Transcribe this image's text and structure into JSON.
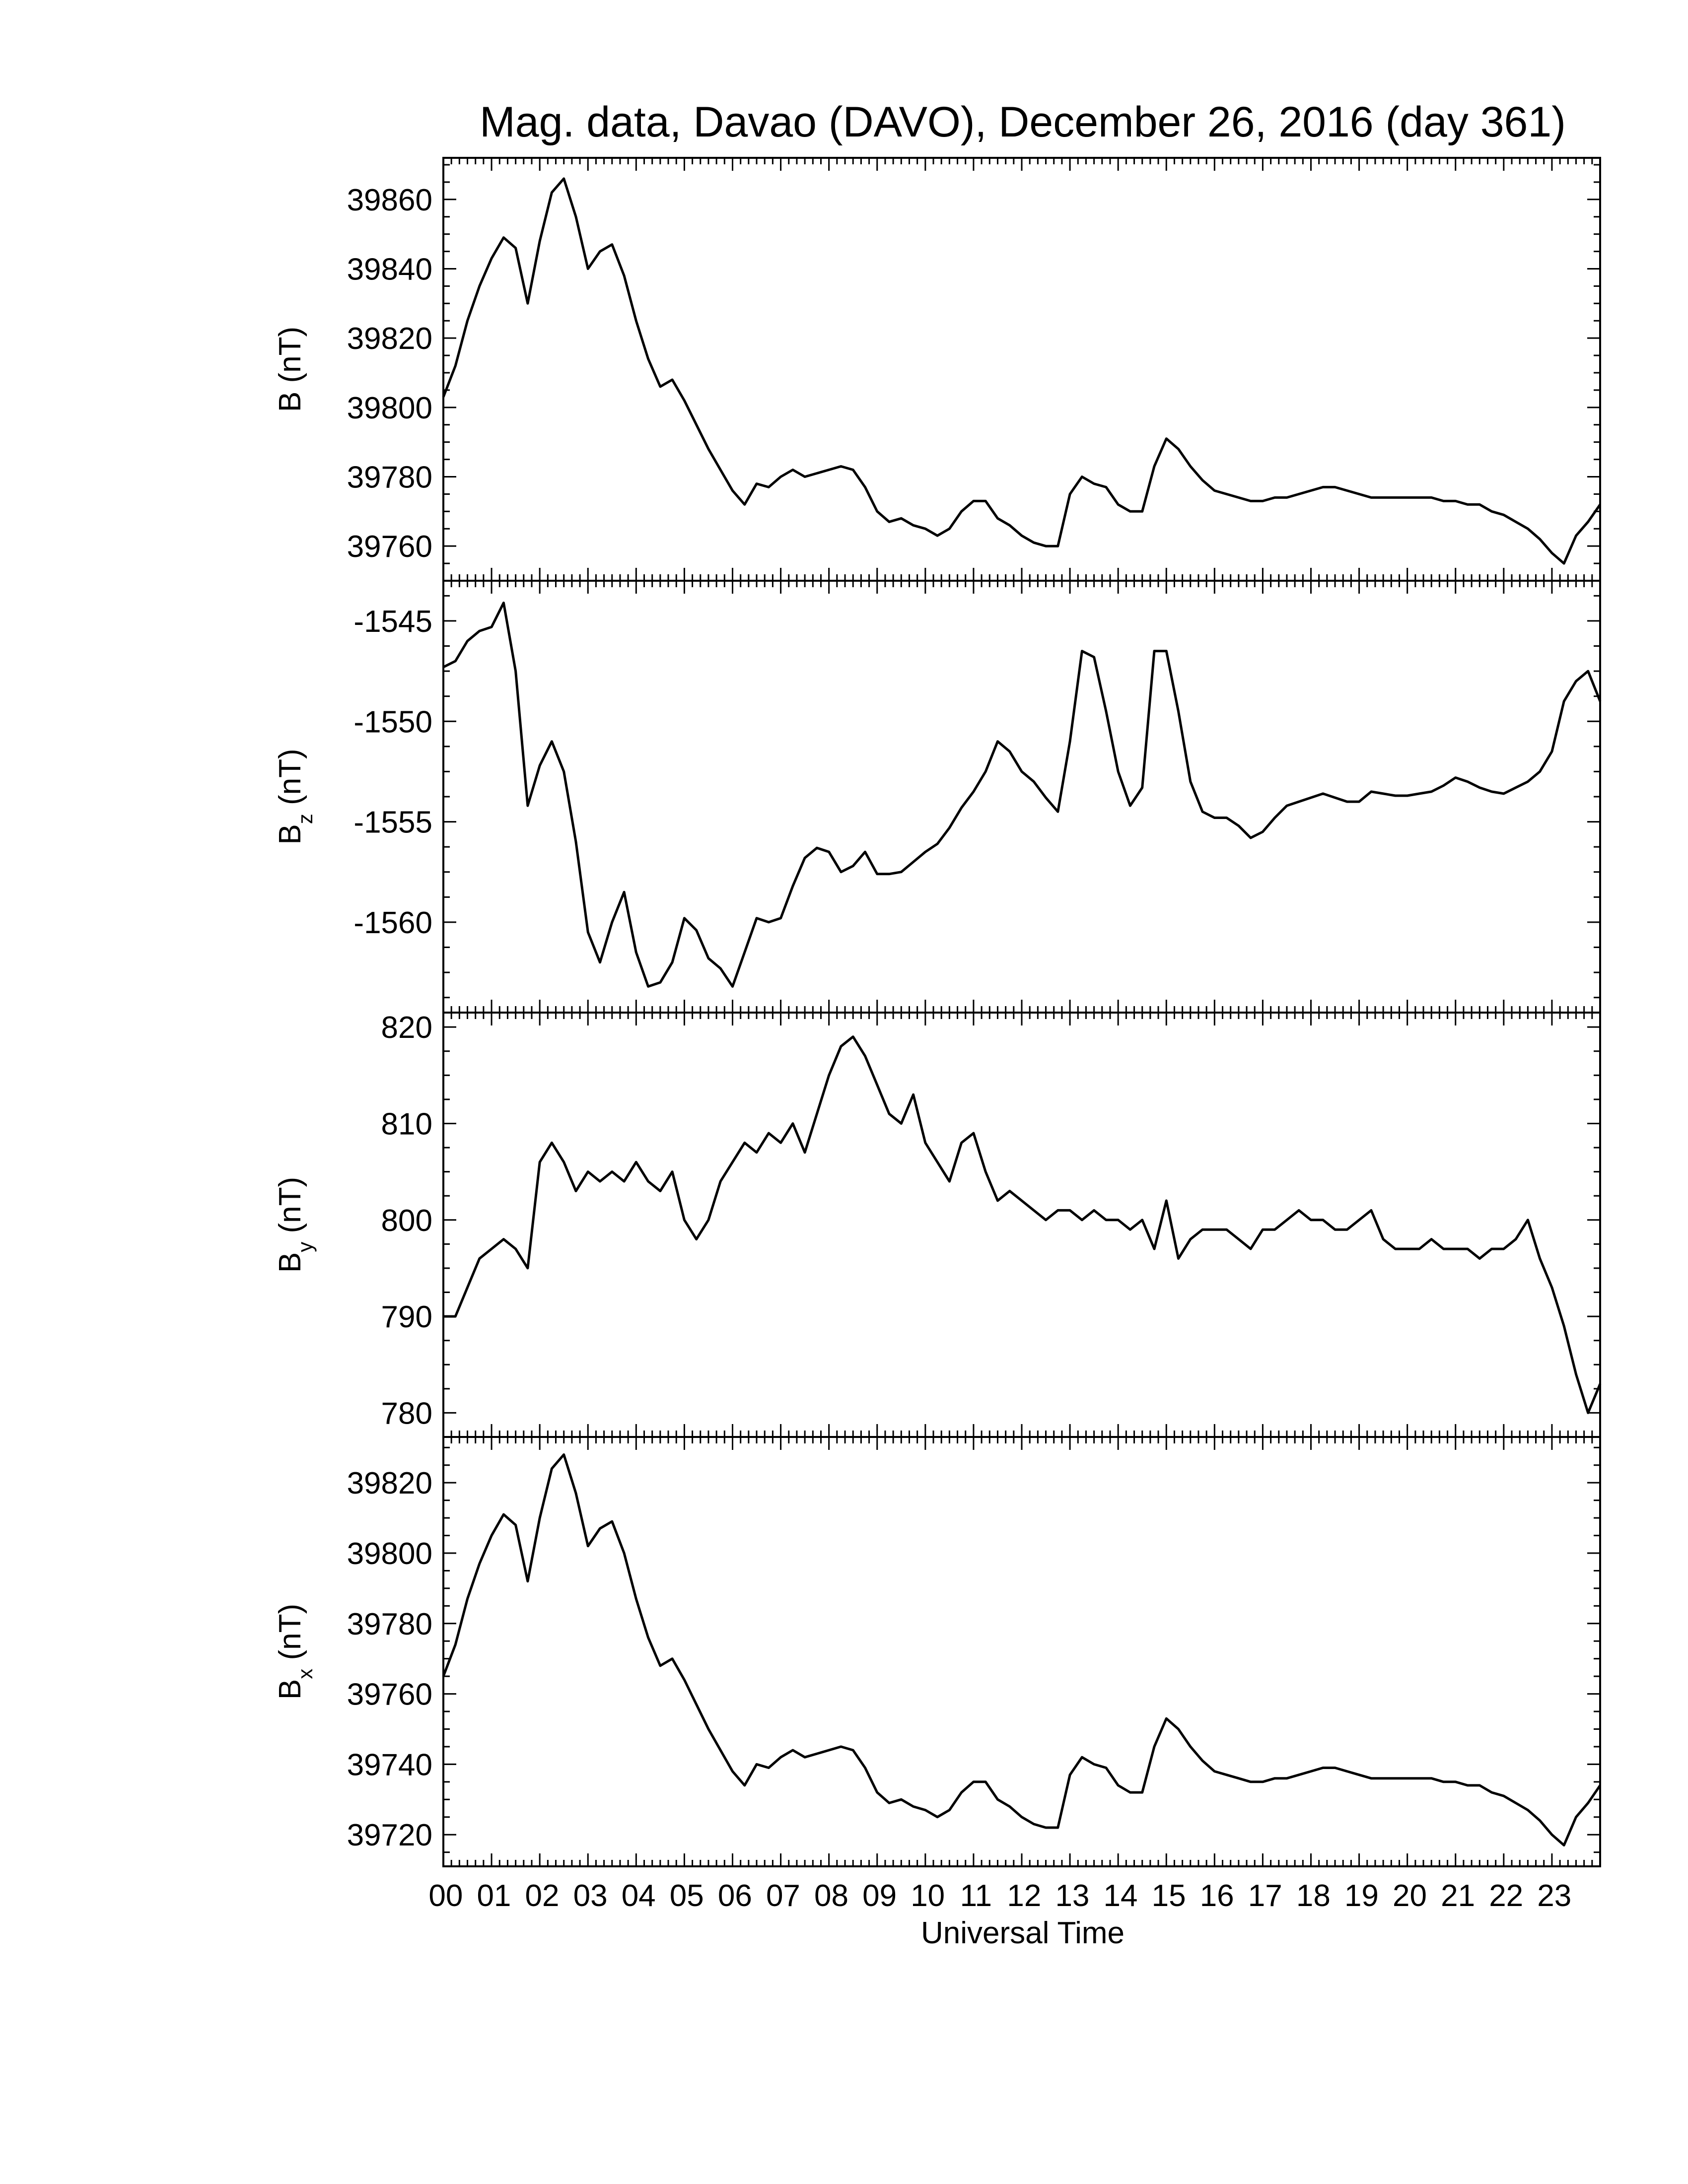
{
  "chart_data": {
    "title": "Mag. data, Davao (DAVO), December 26, 2016 (day 361)",
    "xlabel": "Universal Time",
    "x_ticks": [
      "00",
      "01",
      "02",
      "03",
      "04",
      "05",
      "06",
      "07",
      "08",
      "09",
      "10",
      "11",
      "12",
      "13",
      "14",
      "15",
      "16",
      "17",
      "18",
      "19",
      "20",
      "21",
      "22",
      "23"
    ],
    "xlim": [
      0,
      24
    ],
    "panels": [
      {
        "type": "line",
        "label_main": "B",
        "label_sub": "",
        "label_unit": "(nT)",
        "ylim": [
          39750,
          39872
        ],
        "yticks": [
          39760,
          39780,
          39800,
          39820,
          39840,
          39860
        ],
        "series": [
          {
            "x": [
              0,
              0.25,
              0.5,
              0.75,
              1.0,
              1.25,
              1.5,
              1.75,
              2.0,
              2.25,
              2.5,
              2.75,
              3.0,
              3.25,
              3.5,
              3.75,
              4.0,
              4.25,
              4.5,
              4.75,
              5.0,
              5.25,
              5.5,
              5.75,
              6.0,
              6.25,
              6.5,
              6.75,
              7.0,
              7.25,
              7.5,
              7.75,
              8.0,
              8.25,
              8.5,
              8.75,
              9.0,
              9.25,
              9.5,
              9.75,
              10.0,
              10.25,
              10.5,
              10.75,
              11.0,
              11.25,
              11.5,
              11.75,
              12.0,
              12.25,
              12.5,
              12.75,
              13.0,
              13.25,
              13.5,
              13.75,
              14.0,
              14.25,
              14.5,
              14.75,
              15.0,
              15.25,
              15.5,
              15.75,
              16.0,
              16.25,
              16.5,
              16.75,
              17.0,
              17.25,
              17.5,
              17.75,
              18.0,
              18.25,
              18.5,
              18.75,
              19.0,
              19.25,
              19.5,
              19.75,
              20.0,
              20.25,
              20.5,
              20.75,
              21.0,
              21.25,
              21.5,
              21.75,
              22.0,
              22.25,
              22.5,
              22.75,
              23.0,
              23.25,
              23.5,
              23.75,
              24.0
            ],
            "values": [
              39803,
              39812,
              39825,
              39835,
              39843,
              39849,
              39846,
              39830,
              39848,
              39862,
              39866,
              39855,
              39840,
              39845,
              39847,
              39838,
              39825,
              39814,
              39806,
              39808,
              39802,
              39795,
              39788,
              39782,
              39776,
              39772,
              39778,
              39777,
              39780,
              39782,
              39780,
              39781,
              39782,
              39783,
              39782,
              39777,
              39770,
              39767,
              39768,
              39766,
              39765,
              39763,
              39765,
              39770,
              39773,
              39773,
              39768,
              39766,
              39763,
              39761,
              39760,
              39760,
              39775,
              39780,
              39778,
              39777,
              39772,
              39770,
              39770,
              39783,
              39791,
              39788,
              39783,
              39779,
              39776,
              39775,
              39774,
              39773,
              39773,
              39774,
              39774,
              39775,
              39776,
              39777,
              39777,
              39776,
              39775,
              39774,
              39774,
              39774,
              39774,
              39774,
              39774,
              39773,
              39773,
              39772,
              39772,
              39770,
              39769,
              39767,
              39765,
              39762,
              39758,
              39755,
              39763,
              39767,
              39772
            ]
          }
        ]
      },
      {
        "type": "line",
        "label_main": "B",
        "label_sub": "z",
        "label_unit": "(nT)",
        "ylim": [
          -1564.5,
          -1543
        ],
        "yticks": [
          -1545,
          -1550,
          -1555,
          -1560
        ],
        "series": [
          {
            "x": [
              0,
              0.25,
              0.5,
              0.75,
              1.0,
              1.25,
              1.5,
              1.75,
              2.0,
              2.25,
              2.5,
              2.75,
              3.0,
              3.25,
              3.5,
              3.75,
              4.0,
              4.25,
              4.5,
              4.75,
              5.0,
              5.25,
              5.5,
              5.75,
              6.0,
              6.25,
              6.5,
              6.75,
              7.0,
              7.25,
              7.5,
              7.75,
              8.0,
              8.25,
              8.5,
              8.75,
              9.0,
              9.25,
              9.5,
              9.75,
              10.0,
              10.25,
              10.5,
              10.75,
              11.0,
              11.25,
              11.5,
              11.75,
              12.0,
              12.25,
              12.5,
              12.75,
              13.0,
              13.25,
              13.5,
              13.75,
              14.0,
              14.25,
              14.5,
              14.75,
              15.0,
              15.25,
              15.5,
              15.75,
              16.0,
              16.25,
              16.5,
              16.75,
              17.0,
              17.25,
              17.5,
              17.75,
              18.0,
              18.25,
              18.5,
              18.75,
              19.0,
              19.25,
              19.5,
              19.75,
              20.0,
              20.25,
              20.5,
              20.75,
              21.0,
              21.25,
              21.5,
              21.75,
              22.0,
              22.25,
              22.5,
              22.75,
              23.0,
              23.25,
              23.5,
              23.75,
              24.0
            ],
            "values": [
              -1547.3,
              -1547,
              -1546,
              -1545.5,
              -1545.3,
              -1544.1,
              -1547.5,
              -1554.2,
              -1552.2,
              -1551,
              -1552.5,
              -1556,
              -1560.5,
              -1562,
              -1560,
              -1558.5,
              -1561.5,
              -1563.2,
              -1563,
              -1562,
              -1559.8,
              -1560.4,
              -1561.8,
              -1562.3,
              -1563.2,
              -1561.5,
              -1559.8,
              -1560,
              -1559.8,
              -1558.2,
              -1556.8,
              -1556.3,
              -1556.5,
              -1557.5,
              -1557.2,
              -1556.5,
              -1557.6,
              -1557.6,
              -1557.5,
              -1557,
              -1556.5,
              -1556.1,
              -1555.3,
              -1554.3,
              -1553.5,
              -1552.5,
              -1551,
              -1551.5,
              -1552.5,
              -1553,
              -1553.8,
              -1554.5,
              -1551,
              -1546.5,
              -1546.8,
              -1549.5,
              -1552.5,
              -1554.2,
              -1553.3,
              -1546.5,
              -1546.5,
              -1549.5,
              -1553,
              -1554.5,
              -1554.8,
              -1554.8,
              -1555.2,
              -1555.8,
              -1555.5,
              -1554.8,
              -1554.2,
              -1554,
              -1553.8,
              -1553.6,
              -1553.8,
              -1554,
              -1554,
              -1553.5,
              -1553.6,
              -1553.7,
              -1553.7,
              -1553.6,
              -1553.5,
              -1553.2,
              -1552.8,
              -1553,
              -1553.3,
              -1553.5,
              -1553.6,
              -1553.3,
              -1553,
              -1552.5,
              -1551.5,
              -1549,
              -1548,
              -1547.5,
              -1549
            ]
          }
        ]
      },
      {
        "type": "line",
        "label_main": "B",
        "label_sub": "y",
        "label_unit": "(nT)",
        "ylim": [
          777.5,
          821.5
        ],
        "yticks": [
          780,
          790,
          800,
          810,
          820
        ],
        "series": [
          {
            "x": [
              0,
              0.25,
              0.5,
              0.75,
              1.0,
              1.25,
              1.5,
              1.75,
              2.0,
              2.25,
              2.5,
              2.75,
              3.0,
              3.25,
              3.5,
              3.75,
              4.0,
              4.25,
              4.5,
              4.75,
              5.0,
              5.25,
              5.5,
              5.75,
              6.0,
              6.25,
              6.5,
              6.75,
              7.0,
              7.25,
              7.5,
              7.75,
              8.0,
              8.25,
              8.5,
              8.75,
              9.0,
              9.25,
              9.5,
              9.75,
              10.0,
              10.25,
              10.5,
              10.75,
              11.0,
              11.25,
              11.5,
              11.75,
              12.0,
              12.25,
              12.5,
              12.75,
              13.0,
              13.25,
              13.5,
              13.75,
              14.0,
              14.25,
              14.5,
              14.75,
              15.0,
              15.25,
              15.5,
              15.75,
              16.0,
              16.25,
              16.5,
              16.75,
              17.0,
              17.25,
              17.5,
              17.75,
              18.0,
              18.25,
              18.5,
              18.75,
              19.0,
              19.25,
              19.5,
              19.75,
              20.0,
              20.25,
              20.5,
              20.75,
              21.0,
              21.25,
              21.5,
              21.75,
              22.0,
              22.25,
              22.5,
              22.75,
              23.0,
              23.25,
              23.5,
              23.75,
              24.0
            ],
            "values": [
              790,
              790,
              793,
              796,
              797,
              798,
              797,
              795,
              806,
              808,
              806,
              803,
              805,
              804,
              805,
              804,
              806,
              804,
              803,
              805,
              800,
              798,
              800,
              804,
              806,
              808,
              807,
              809,
              808,
              810,
              807,
              811,
              815,
              818,
              819,
              817,
              814,
              811,
              810,
              813,
              808,
              806,
              804,
              808,
              809,
              805,
              802,
              803,
              802,
              801,
              800,
              801,
              801,
              800,
              801,
              800,
              800,
              799,
              800,
              797,
              802,
              796,
              798,
              799,
              799,
              799,
              798,
              797,
              799,
              799,
              800,
              801,
              800,
              800,
              799,
              799,
              800,
              801,
              798,
              797,
              797,
              797,
              798,
              797,
              797,
              797,
              796,
              797,
              797,
              798,
              800,
              796,
              793,
              789,
              784,
              780,
              783
            ]
          }
        ]
      },
      {
        "type": "line",
        "label_main": "B",
        "label_sub": "x",
        "label_unit": "(nT)",
        "ylim": [
          39711,
          39833
        ],
        "yticks": [
          39720,
          39740,
          39760,
          39780,
          39800,
          39820
        ],
        "series": [
          {
            "x": [
              0,
              0.25,
              0.5,
              0.75,
              1.0,
              1.25,
              1.5,
              1.75,
              2.0,
              2.25,
              2.5,
              2.75,
              3.0,
              3.25,
              3.5,
              3.75,
              4.0,
              4.25,
              4.5,
              4.75,
              5.0,
              5.25,
              5.5,
              5.75,
              6.0,
              6.25,
              6.5,
              6.75,
              7.0,
              7.25,
              7.5,
              7.75,
              8.0,
              8.25,
              8.5,
              8.75,
              9.0,
              9.25,
              9.5,
              9.75,
              10.0,
              10.25,
              10.5,
              10.75,
              11.0,
              11.25,
              11.5,
              11.75,
              12.0,
              12.25,
              12.5,
              12.75,
              13.0,
              13.25,
              13.5,
              13.75,
              14.0,
              14.25,
              14.5,
              14.75,
              15.0,
              15.25,
              15.5,
              15.75,
              16.0,
              16.25,
              16.5,
              16.75,
              17.0,
              17.25,
              17.5,
              17.75,
              18.0,
              18.25,
              18.5,
              18.75,
              19.0,
              19.25,
              19.5,
              19.75,
              20.0,
              20.25,
              20.5,
              20.75,
              21.0,
              21.25,
              21.5,
              21.75,
              22.0,
              22.25,
              22.5,
              22.75,
              23.0,
              23.25,
              23.5,
              23.75,
              24.0
            ],
            "values": [
              39765,
              39774,
              39787,
              39797,
              39805,
              39811,
              39808,
              39792,
              39810,
              39824,
              39828,
              39817,
              39802,
              39807,
              39809,
              39800,
              39787,
              39776,
              39768,
              39770,
              39764,
              39757,
              39750,
              39744,
              39738,
              39734,
              39740,
              39739,
              39742,
              39744,
              39742,
              39743,
              39744,
              39745,
              39744,
              39739,
              39732,
              39729,
              39730,
              39728,
              39727,
              39725,
              39727,
              39732,
              39735,
              39735,
              39730,
              39728,
              39725,
              39723,
              39722,
              39722,
              39737,
              39742,
              39740,
              39739,
              39734,
              39732,
              39732,
              39745,
              39753,
              39750,
              39745,
              39741,
              39738,
              39737,
              39736,
              39735,
              39735,
              39736,
              39736,
              39737,
              39738,
              39739,
              39739,
              39738,
              39737,
              39736,
              39736,
              39736,
              39736,
              39736,
              39736,
              39735,
              39735,
              39734,
              39734,
              39732,
              39731,
              39729,
              39727,
              39724,
              39720,
              39717,
              39725,
              39729,
              39734
            ]
          }
        ]
      }
    ]
  }
}
